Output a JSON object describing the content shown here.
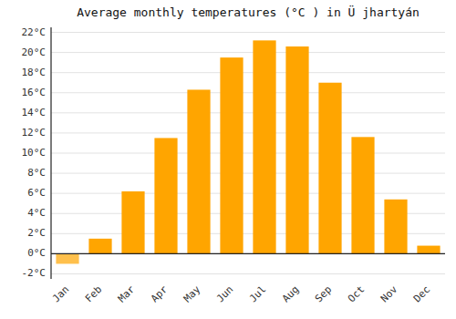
{
  "chart_data": {
    "type": "bar",
    "title": "Average monthly temperatures (°C ) in Ü jhartyán",
    "categories": [
      "Jan",
      "Feb",
      "Mar",
      "Apr",
      "May",
      "Jun",
      "Jul",
      "Aug",
      "Sep",
      "Oct",
      "Nov",
      "Dec"
    ],
    "values": [
      -1.0,
      1.5,
      6.2,
      11.5,
      16.3,
      19.5,
      21.2,
      20.6,
      17.0,
      11.6,
      5.4,
      0.8
    ],
    "colors": [
      "#FFC04C",
      "#FFA500",
      "#FFA500",
      "#FFA500",
      "#FFA500",
      "#FFA500",
      "#FFA500",
      "#FFA500",
      "#FFA500",
      "#FFA500",
      "#FFA500",
      "#FFA500"
    ],
    "ylim": [
      -2.5,
      22.5
    ],
    "yticks": [
      {
        "value": -2,
        "label": "-2°C"
      },
      {
        "value": 0,
        "label": "0°C"
      },
      {
        "value": 2,
        "label": "2°C"
      },
      {
        "value": 4,
        "label": "4°C"
      },
      {
        "value": 6,
        "label": "6°C"
      },
      {
        "value": 8,
        "label": "8°C"
      },
      {
        "value": 10,
        "label": "10°C"
      },
      {
        "value": 12,
        "label": "12°C"
      },
      {
        "value": 14,
        "label": "14°C"
      },
      {
        "value": 16,
        "label": "16°C"
      },
      {
        "value": 18,
        "label": "18°C"
      },
      {
        "value": 20,
        "label": "20°C"
      },
      {
        "value": 22,
        "label": "22°C"
      }
    ],
    "grid": true
  }
}
